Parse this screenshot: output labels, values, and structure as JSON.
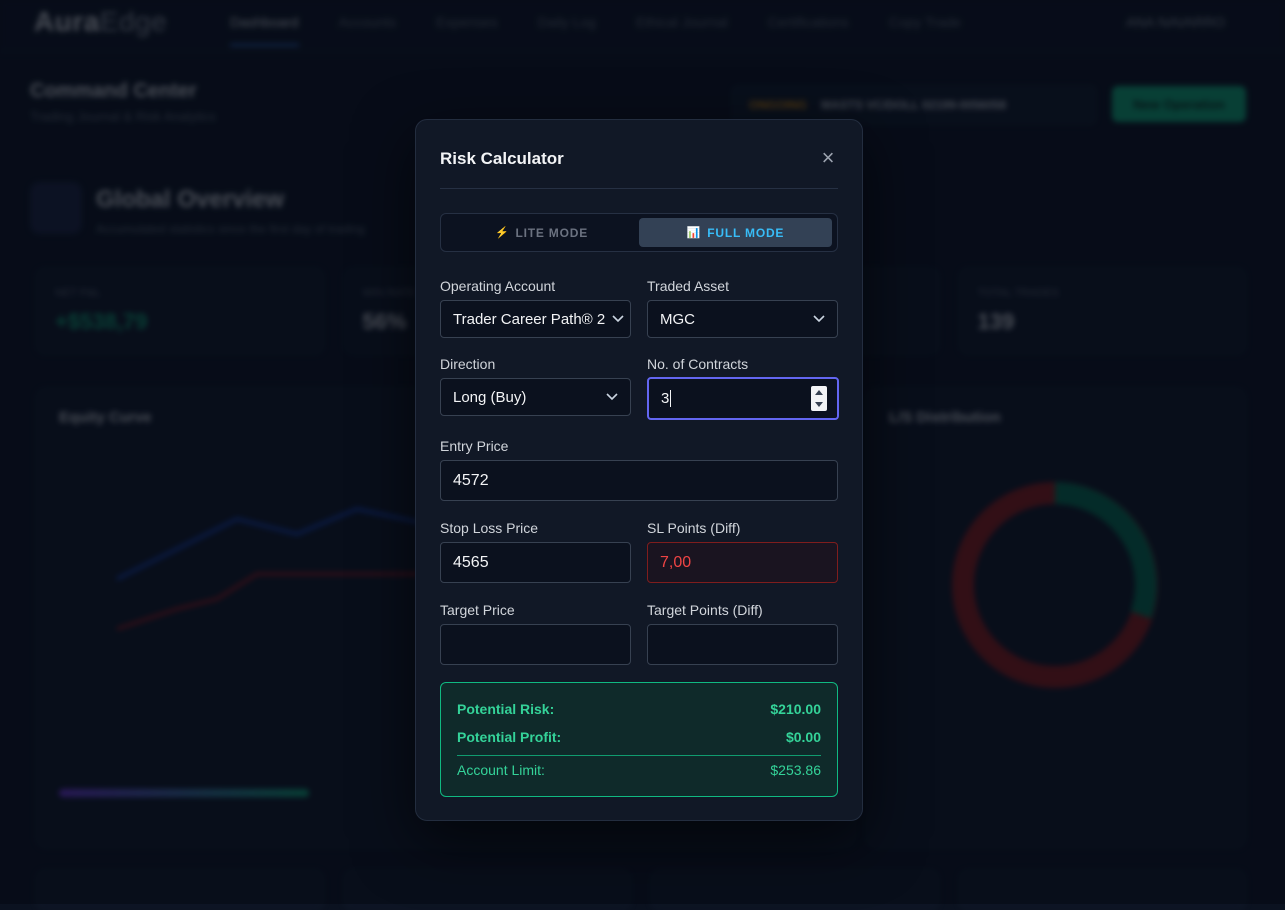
{
  "background": {
    "logo_a": "Aura",
    "logo_b": "Edge",
    "nav": [
      "Dashboard",
      "Accounts",
      "Expenses",
      "Daily Log",
      "Ethical Journal",
      "Certifications",
      "Copy Trade"
    ],
    "user": "ANA NAVARRO",
    "page_title": "Command Center",
    "page_subtitle": "Trading Journal & Risk Analytics",
    "account_tag": "ONGOING",
    "account_name": "MASTS VC/DOLL 02199-0056058",
    "new_button": "New Operation",
    "overview_title": "Global Overview",
    "overview_sub": "Accumulated statistics since the first day of trading",
    "stats": [
      {
        "label": "NET P&L",
        "value": "+$538,79",
        "green": true
      },
      {
        "label": "WIN RATE",
        "value": "56%",
        "green": false
      },
      {
        "label": "",
        "value": "",
        "green": false
      },
      {
        "label": "TOTAL TRADES",
        "value": "139",
        "green": false
      }
    ],
    "equity_title": "Equity Curve",
    "ls_title": "L/S Distribution"
  },
  "modal": {
    "title": "Risk Calculator",
    "close": "×",
    "lite_label": "LITE MODE",
    "full_label": "FULL MODE",
    "lite_icon": "⚡",
    "full_icon": "📊",
    "operating_account_label": "Operating Account",
    "operating_account_value": "Trader Career Path® 2",
    "traded_asset_label": "Traded Asset",
    "traded_asset_value": "MGC",
    "direction_label": "Direction",
    "direction_value": "Long (Buy)",
    "contracts_label": "No. of Contracts",
    "contracts_value": "3",
    "entry_label": "Entry Price",
    "entry_value": "4572",
    "stop_label": "Stop Loss Price",
    "stop_value": "4565",
    "sl_points_label": "SL Points (Diff)",
    "sl_points_value": "7,00",
    "target_label": "Target Price",
    "target_value": "",
    "target_points_label": "Target Points (Diff)",
    "target_points_value": "",
    "summary": {
      "risk_label": "Potential Risk:",
      "risk_value": "$210.00",
      "profit_label": "Potential Profit:",
      "profit_value": "$0.00",
      "limit_label": "Account Limit:",
      "limit_value": "$253.86"
    }
  }
}
